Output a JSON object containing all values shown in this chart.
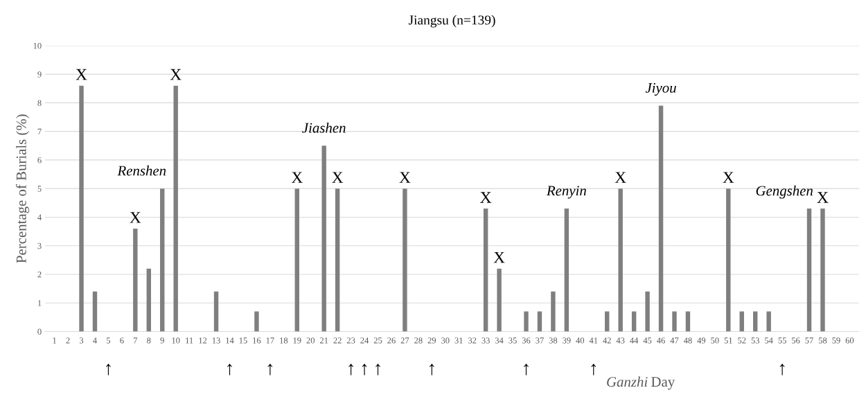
{
  "chart_data": {
    "type": "bar",
    "title": "Jiangsu (n=139)",
    "ylabel": "Percentage of Burials (%)",
    "xlabel": "Ganzhi Day",
    "categories": [
      "1",
      "2",
      "3",
      "4",
      "5",
      "6",
      "7",
      "8",
      "9",
      "10",
      "11",
      "12",
      "13",
      "14",
      "15",
      "16",
      "17",
      "18",
      "19",
      "20",
      "21",
      "22",
      "23",
      "24",
      "25",
      "26",
      "27",
      "28",
      "29",
      "30",
      "31",
      "32",
      "33",
      "34",
      "35",
      "36",
      "37",
      "38",
      "39",
      "40",
      "41",
      "42",
      "43",
      "44",
      "45",
      "46",
      "47",
      "48",
      "49",
      "50",
      "51",
      "52",
      "53",
      "54",
      "55",
      "56",
      "57",
      "58",
      "59",
      "60"
    ],
    "values": [
      0,
      0,
      8.6,
      1.4,
      0,
      0,
      3.6,
      2.2,
      5.0,
      8.6,
      0,
      0,
      1.4,
      0,
      0,
      0.7,
      0,
      0,
      5.0,
      0,
      6.5,
      5.0,
      0,
      0,
      0,
      0,
      5.0,
      0,
      0,
      0,
      0,
      0,
      4.3,
      2.2,
      0,
      0.7,
      0.7,
      1.4,
      4.3,
      0,
      0,
      0.7,
      5.0,
      0.7,
      1.4,
      7.9,
      0.7,
      0.7,
      0,
      0,
      5.0,
      0.7,
      0.7,
      0.7,
      0,
      0,
      4.3,
      4.3,
      0,
      0
    ],
    "color": "#7f7f7f",
    "ylim": [
      0,
      10
    ],
    "yticks": [
      0,
      1,
      2,
      3,
      4,
      5,
      6,
      7,
      8,
      9,
      10
    ],
    "grid": "y",
    "annotations": [
      {
        "text": "X",
        "x": "3",
        "y": 8.6
      },
      {
        "text": "X",
        "x": "7",
        "y": 3.6
      },
      {
        "text": "X",
        "x": "10",
        "y": 8.6
      },
      {
        "text": "X",
        "x": "19",
        "y": 5.0
      },
      {
        "text": "X",
        "x": "22",
        "y": 5.0
      },
      {
        "text": "X",
        "x": "27",
        "y": 5.0
      },
      {
        "text": "X",
        "x": "33",
        "y": 4.3
      },
      {
        "text": "X",
        "x": "34",
        "y": 2.2
      },
      {
        "text": "X",
        "x": "43",
        "y": 5.0
      },
      {
        "text": "X",
        "x": "51",
        "y": 5.0
      },
      {
        "text": "X",
        "x": "58",
        "y": 4.3
      },
      {
        "text": "Renshen",
        "x": "9",
        "y": 5.0
      },
      {
        "text": "Jiashen",
        "x": "21",
        "y": 6.5
      },
      {
        "text": "Renyin",
        "x": "39",
        "y": 4.3
      },
      {
        "text": "Jiyou",
        "x": "46",
        "y": 7.9
      },
      {
        "text": "Gengshen",
        "x": "57",
        "y": 4.3
      },
      {
        "text": "↑",
        "x": "5",
        "y": 0
      },
      {
        "text": "↑",
        "x": "14",
        "y": 0
      },
      {
        "text": "↑",
        "x": "17",
        "y": 0
      },
      {
        "text": "↑",
        "x": "23",
        "y": 0
      },
      {
        "text": "↑",
        "x": "24",
        "y": 0
      },
      {
        "text": "↑",
        "x": "25",
        "y": 0
      },
      {
        "text": "↑",
        "x": "29",
        "y": 0
      },
      {
        "text": "↑",
        "x": "36",
        "y": 0
      },
      {
        "text": "↑",
        "x": "41",
        "y": 0
      },
      {
        "text": "↑",
        "x": "55",
        "y": 0
      }
    ]
  }
}
